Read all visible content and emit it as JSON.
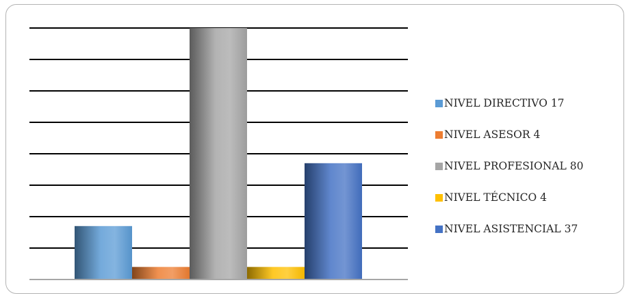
{
  "chart_data": {
    "type": "bar",
    "categories": [
      "NIVEL DIRECTIVO 17",
      "NIVEL ASESOR 4",
      "NIVEL PROFESIONAL 80",
      "NIVEL TÉCNICO 4",
      "NIVEL ASISTENCIAL 37"
    ],
    "values": [
      17,
      4,
      80,
      4,
      37
    ],
    "colors": [
      "#5b9bd5",
      "#ed7d31",
      "#a5a5a5",
      "#ffc000",
      "#4472c4"
    ],
    "ylim": [
      0,
      80
    ],
    "gridlines": 8,
    "grid": true,
    "legend": "right"
  }
}
